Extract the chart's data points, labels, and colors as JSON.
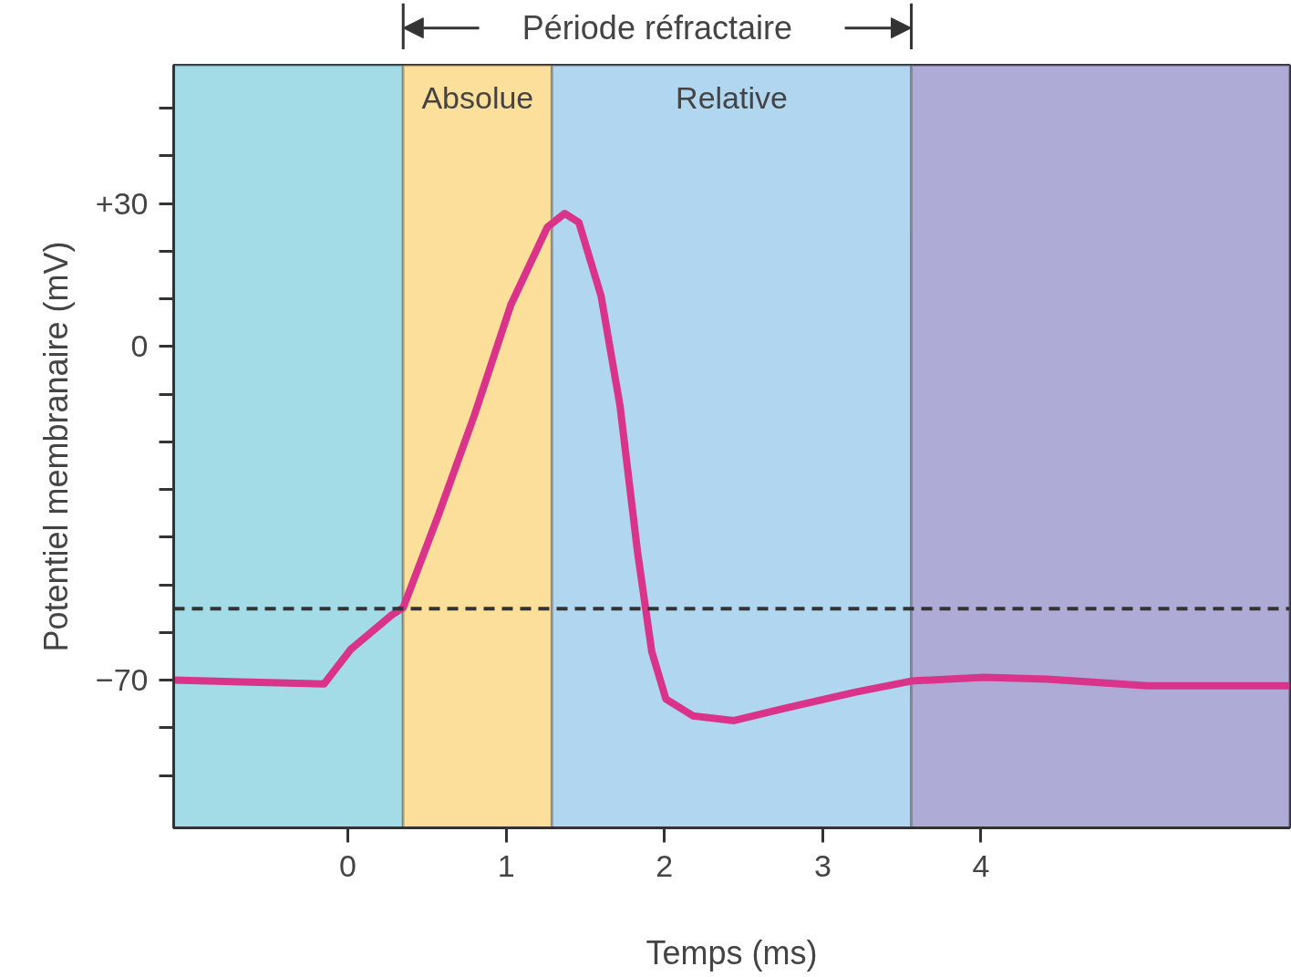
{
  "chart_data": {
    "type": "line",
    "xlabel": "Temps (ms)",
    "ylabel": "Potentiel membranaire (mV)",
    "annotations": [
      "Période réfractaire"
    ],
    "x": [
      -1.1,
      -0.15,
      0.02,
      0.28,
      0.35,
      0.57,
      0.8,
      1.03,
      1.26,
      1.37,
      1.46,
      1.6,
      1.72,
      1.83,
      1.92,
      2.01,
      2.18,
      2.44,
      2.75,
      3.21,
      3.56,
      4.02,
      4.42,
      5.05,
      5.95
    ],
    "series": [
      {
        "color": "#d9338a",
        "values": [
          -70,
          -70.8,
          -63.5,
          -56.3,
          -54.8,
          -35.6,
          -14.4,
          8.7,
          25,
          27.9,
          26,
          10.6,
          -12.5,
          -43,
          -64,
          -74,
          -77.5,
          -78.5,
          -76,
          -72.5,
          -70.2,
          -69.4,
          -69.8,
          -71.2,
          -71.2
        ]
      }
    ],
    "xlim": [
      -1.1,
      5.95
    ],
    "ylim": [
      -101,
      59
    ],
    "xticks": [
      0,
      1,
      2,
      3,
      4
    ],
    "yticks": [
      {
        "value": 50,
        "label": null
      },
      {
        "value": 40,
        "label": null
      },
      {
        "value": 30,
        "label": "+30"
      },
      {
        "value": 20,
        "label": null
      },
      {
        "value": 10,
        "label": null
      },
      {
        "value": 0,
        "label": "0"
      },
      {
        "value": -10,
        "label": null
      },
      {
        "value": -20,
        "label": null
      },
      {
        "value": -30,
        "label": null
      },
      {
        "value": -40,
        "label": null
      },
      {
        "value": -50,
        "label": null
      },
      {
        "value": -60,
        "label": null
      },
      {
        "value": -70,
        "label": "−70"
      },
      {
        "value": -80,
        "label": null
      },
      {
        "value": -90,
        "label": null
      }
    ],
    "ref_lines": [
      {
        "axis": "y",
        "value": -55,
        "label": null,
        "color": "#333333",
        "line_style": "dashed"
      }
    ],
    "bands": [
      {
        "axis": "x",
        "from": -1.1,
        "to": 0.35,
        "label": null,
        "color": "#a3dce6"
      },
      {
        "axis": "x",
        "from": 0.35,
        "to": 1.29,
        "label": "Absolue",
        "color": "#fbdf9b"
      },
      {
        "axis": "x",
        "from": 1.29,
        "to": 3.56,
        "label": "Relative",
        "color": "#b1d6ef"
      },
      {
        "axis": "x",
        "from": 3.56,
        "to": 5.95,
        "label": null,
        "color": "#aeabd6"
      }
    ],
    "grid": false,
    "marker": "none",
    "line_style": "solid"
  }
}
